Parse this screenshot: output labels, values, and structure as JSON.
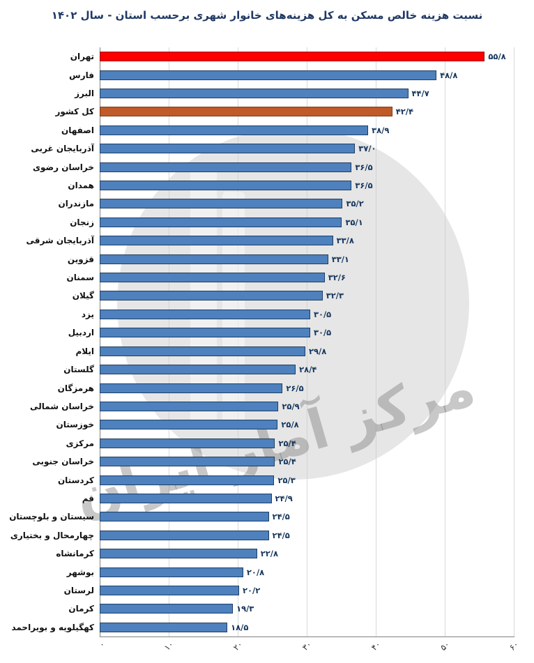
{
  "chart_data": {
    "type": "bar",
    "orientation": "horizontal",
    "title": "نسبت هزینه خالص مسکن به کل هزینه‌های خانوار شهری برحسب استان - سال ۱۴۰۲",
    "x_axis": {
      "min": 0,
      "max": 60,
      "tick_step": 10,
      "tick_labels": [
        "۰",
        "۱۰",
        "۲۰",
        "۳۰",
        "۴۰",
        "۵۰",
        "۶۰"
      ],
      "grid": true,
      "tick_label_rotation_deg": -45
    },
    "colors": {
      "default": "#4e81bd",
      "default_border": "#1d3d63",
      "red": "#ff0000",
      "red_border": "#8b1a1a",
      "orange": "#c05a28",
      "orange_border": "#7c3a12"
    },
    "bars": [
      {
        "label": "تهران",
        "value": 55.8,
        "value_label": "۵۵/۸",
        "color_key": "red"
      },
      {
        "label": "فارس",
        "value": 48.8,
        "value_label": "۴۸/۸",
        "color_key": "default"
      },
      {
        "label": "البرز",
        "value": 44.7,
        "value_label": "۴۴/۷",
        "color_key": "default"
      },
      {
        "label": "کل کشور",
        "value": 42.4,
        "value_label": "۴۲/۴",
        "color_key": "orange"
      },
      {
        "label": "اصفهان",
        "value": 38.9,
        "value_label": "۳۸/۹",
        "color_key": "default"
      },
      {
        "label": "آذربایجان غربی",
        "value": 37.0,
        "value_label": "۳۷/۰",
        "color_key": "default"
      },
      {
        "label": "خراسان رضوی",
        "value": 36.5,
        "value_label": "۳۶/۵",
        "color_key": "default"
      },
      {
        "label": "همدان",
        "value": 36.5,
        "value_label": "۳۶/۵",
        "color_key": "default"
      },
      {
        "label": "مازندران",
        "value": 35.2,
        "value_label": "۳۵/۲",
        "color_key": "default"
      },
      {
        "label": "زنجان",
        "value": 35.1,
        "value_label": "۳۵/۱",
        "color_key": "default"
      },
      {
        "label": "آذربایجان شرقی",
        "value": 33.8,
        "value_label": "۳۳/۸",
        "color_key": "default"
      },
      {
        "label": "قزوین",
        "value": 33.1,
        "value_label": "۳۳/۱",
        "color_key": "default"
      },
      {
        "label": "سمنان",
        "value": 32.6,
        "value_label": "۳۲/۶",
        "color_key": "default"
      },
      {
        "label": "گیلان",
        "value": 32.3,
        "value_label": "۳۲/۳",
        "color_key": "default"
      },
      {
        "label": "یزد",
        "value": 30.5,
        "value_label": "۳۰/۵",
        "color_key": "default"
      },
      {
        "label": "اردبیل",
        "value": 30.5,
        "value_label": "۳۰/۵",
        "color_key": "default"
      },
      {
        "label": "ایلام",
        "value": 29.8,
        "value_label": "۲۹/۸",
        "color_key": "default"
      },
      {
        "label": "گلستان",
        "value": 28.4,
        "value_label": "۲۸/۴",
        "color_key": "default"
      },
      {
        "label": "هرمزگان",
        "value": 26.5,
        "value_label": "۲۶/۵",
        "color_key": "default"
      },
      {
        "label": "خراسان شمالی",
        "value": 25.9,
        "value_label": "۲۵/۹",
        "color_key": "default"
      },
      {
        "label": "خوزستان",
        "value": 25.8,
        "value_label": "۲۵/۸",
        "color_key": "default"
      },
      {
        "label": "مرکزی",
        "value": 25.4,
        "value_label": "۲۵/۴",
        "color_key": "default"
      },
      {
        "label": "خراسان جنوبی",
        "value": 25.4,
        "value_label": "۲۵/۴",
        "color_key": "default"
      },
      {
        "label": "کردستان",
        "value": 25.3,
        "value_label": "۲۵/۳",
        "color_key": "default"
      },
      {
        "label": "قم",
        "value": 24.9,
        "value_label": "۲۴/۹",
        "color_key": "default"
      },
      {
        "label": "سیستان و بلوچستان",
        "value": 24.5,
        "value_label": "۲۴/۵",
        "color_key": "default"
      },
      {
        "label": "چهارمحال و بختیاری",
        "value": 24.5,
        "value_label": "۲۴/۵",
        "color_key": "default"
      },
      {
        "label": "کرمانشاه",
        "value": 22.8,
        "value_label": "۲۲/۸",
        "color_key": "default"
      },
      {
        "label": "بوشهر",
        "value": 20.8,
        "value_label": "۲۰/۸",
        "color_key": "default"
      },
      {
        "label": "لرستان",
        "value": 20.2,
        "value_label": "۲۰/۲",
        "color_key": "default"
      },
      {
        "label": "کرمان",
        "value": 19.3,
        "value_label": "۱۹/۳",
        "color_key": "default"
      },
      {
        "label": "کهگیلویه و بویراحمد",
        "value": 18.5,
        "value_label": "۱۸/۵",
        "color_key": "default"
      }
    ],
    "watermark": {
      "text": "مرکز آمار ایران"
    }
  }
}
